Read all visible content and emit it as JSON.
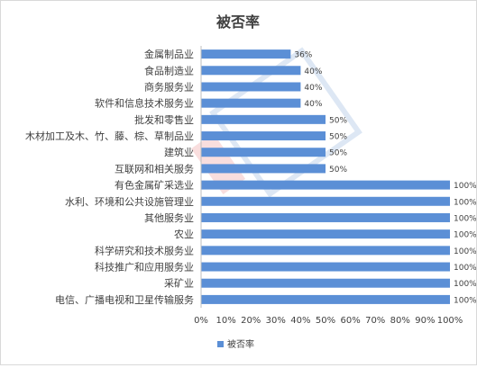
{
  "chart_data": {
    "type": "bar",
    "orientation": "horizontal",
    "title": "被否率",
    "categories": [
      "金属制品业",
      "食品制造业",
      "商务服务业",
      "软件和信息技术服务业",
      "批发和零售业",
      "木材加工及木、竹、藤、棕、草制品业",
      "建筑业",
      "互联网和相关服务",
      "有色金属矿采选业",
      "水利、环境和公共设施管理业",
      "其他服务业",
      "农业",
      "科学研究和技术服务业",
      "科技推广和应用服务业",
      "采矿业",
      "电信、广播电视和卫星传输服务"
    ],
    "series": [
      {
        "name": "被否率",
        "values": [
          36,
          40,
          40,
          40,
          50,
          50,
          50,
          50,
          100,
          100,
          100,
          100,
          100,
          100,
          100,
          100
        ],
        "labels": [
          "36%",
          "40%",
          "40%",
          "40%",
          "50%",
          "50%",
          "50%",
          "50%",
          "100%",
          "100%",
          "100%",
          "100%",
          "100%",
          "100%",
          "100%",
          "100%"
        ]
      }
    ],
    "xlim": [
      0,
      100
    ],
    "xticks": [
      "0%",
      "10%",
      "20%",
      "30%",
      "40%",
      "50%",
      "60%",
      "70%",
      "80%",
      "90%",
      "100%"
    ],
    "grid": false,
    "legend_position": "bottom",
    "colors": {
      "bar": "#5b8fd6",
      "text": "#404040",
      "axis": "#d9d9d9"
    }
  }
}
